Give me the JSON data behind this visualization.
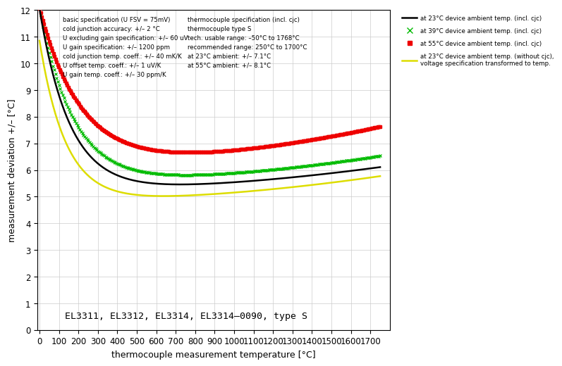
{
  "title": "",
  "xlabel": "thermocouple measurement temperature [°C]",
  "ylabel": "measurement deviation +/– [°C]",
  "xlim": [
    -10,
    1800
  ],
  "ylim": [
    0,
    12
  ],
  "xticks": [
    0,
    100,
    200,
    300,
    400,
    500,
    600,
    700,
    800,
    900,
    1000,
    1100,
    1200,
    1300,
    1400,
    1500,
    1600,
    1700
  ],
  "yticks": [
    0,
    1,
    2,
    3,
    4,
    5,
    6,
    7,
    8,
    9,
    10,
    11,
    12
  ],
  "annotation": "EL3311, EL3312, EL3314, EL3314–0090, type S",
  "legend_entries": [
    "at 23°C device ambient temp. (incl. cjc)",
    "at 39°C device ambient temp. (incl. cjc)",
    "at 55°C device ambient temp. (incl. cjc)",
    "at 23°C device ambient temp. (without cjc),\nvoltage specification transformed to temp."
  ],
  "textbox_left": "basic specification (U FSV = 75mV)\ncold junction accuracy: +/– 2 °C\nU excluding gain specification: +/– 60 uV\nU gain specification: +/– 1200 ppm\ncold junction temp. coeff.: +/– 40 mK/K\nU offset temp. coeff.: +/– 1 uV/K\nU gain temp. coeff.: +/– 30 ppm/K",
  "textbox_right": "thermocouple specification (incl. cjc)\nthermocouple type S\ntech. usable range: –50°C to 1768°C\nrecommended range: 250°C to 1700°C\nat 23°C ambient: +/– 7.1°C\nat 55°C ambient: +/– 8.1°C",
  "colors": {
    "black_line": "#000000",
    "green_dots": "#00bb00",
    "red_dots": "#ee0000",
    "yellow_line": "#dddd00"
  },
  "background_color": "#ffffff",
  "curve_params": {
    "black": {
      "amp": 6.8,
      "decay": 0.0065,
      "base": 5.25,
      "rise": 2.8e-07
    },
    "green": {
      "amp": 6.5,
      "decay": 0.0058,
      "base": 5.55,
      "rise": 3.2e-07
    },
    "red": {
      "amp": 5.8,
      "decay": 0.0048,
      "base": 6.25,
      "rise": 4.5e-07
    },
    "yellow": {
      "amp": 6.0,
      "decay": 0.0075,
      "base": 4.85,
      "rise": 3e-07
    }
  }
}
